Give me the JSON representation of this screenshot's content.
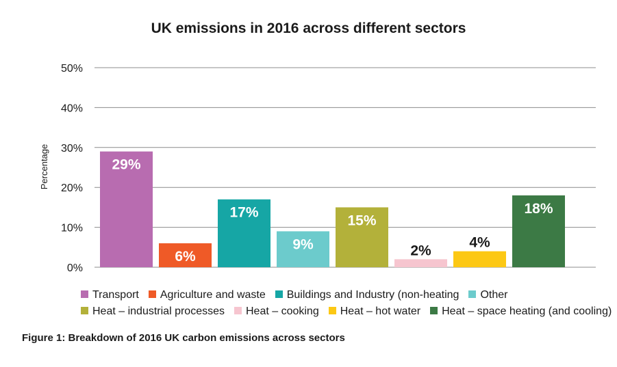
{
  "chart_data": {
    "type": "bar",
    "title": "UK emissions in 2016 across different sectors",
    "ylabel": "Percentage",
    "ylim": [
      0,
      50
    ],
    "yticks": [
      0,
      10,
      20,
      30,
      40,
      50
    ],
    "ytick_labels": [
      "0%",
      "10%",
      "20%",
      "30%",
      "40%",
      "50%"
    ],
    "grid": true,
    "legend_position": "bottom",
    "categories": [
      "Transport",
      "Agriculture and waste",
      "Buildings and Industry (non-heating",
      "Other",
      "Heat – industrial processes",
      "Heat – cooking",
      "Heat – hot water",
      "Heat – space heating (and cooling)"
    ],
    "values": [
      29,
      6,
      17,
      9,
      15,
      2,
      4,
      18
    ],
    "data_labels": [
      "29%",
      "6%",
      "17%",
      "9%",
      "15%",
      "2%",
      "4%",
      "18%"
    ],
    "colors": [
      "#b86cb0",
      "#ef5a27",
      "#16a6a5",
      "#6ccbcc",
      "#b3b13a",
      "#f6c5cf",
      "#fcc814",
      "#3c7a45"
    ],
    "label_colors": [
      "#ffffff",
      "#ffffff",
      "#ffffff",
      "#ffffff",
      "#ffffff",
      "#1a1a1a",
      "#1a1a1a",
      "#ffffff"
    ]
  },
  "caption": "Figure 1: Breakdown of 2016 UK carbon emissions across sectors"
}
